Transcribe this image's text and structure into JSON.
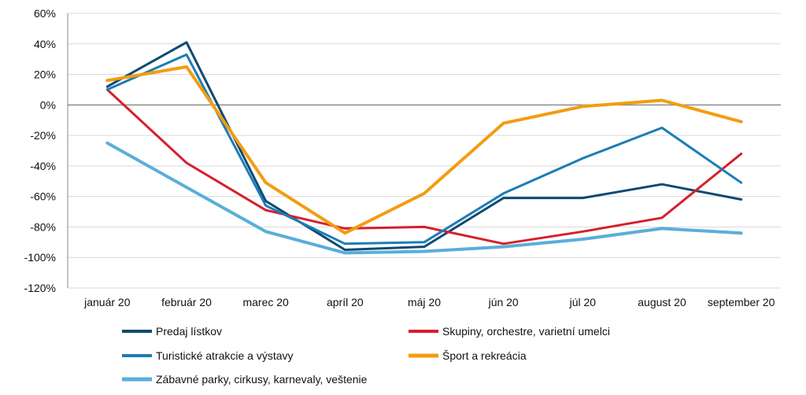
{
  "chart_data": {
    "type": "line",
    "categories": [
      "január 20",
      "február 20",
      "marec 20",
      "apríl 20",
      "máj 20",
      "jún 20",
      "júl 20",
      "august 20",
      "september 20"
    ],
    "ylim": [
      -120,
      60
    ],
    "yticks": [
      60,
      40,
      20,
      0,
      -20,
      -40,
      -60,
      -80,
      -100,
      -120
    ],
    "ytick_labels": [
      "60%",
      "40%",
      "20%",
      "0%",
      "-20%",
      "-40%",
      "-60%",
      "-80%",
      "-100%",
      "-120%"
    ],
    "grid": true,
    "legend_position": "bottom",
    "series": [
      {
        "name": "Predaj lístkov",
        "color": "#0d4a72",
        "values": [
          12,
          41,
          -63,
          -95,
          -93,
          -61,
          -61,
          -52,
          -62
        ]
      },
      {
        "name": "Skupiny, orchestre, varietní umelci",
        "color": "#d71f2b",
        "values": [
          10,
          -38,
          -69,
          -81,
          -80,
          -91,
          -83,
          -74,
          -32
        ]
      },
      {
        "name": "Turistické atrakcie a výstavy",
        "color": "#1c7db5",
        "values": [
          10,
          33,
          -66,
          -91,
          -90,
          -58,
          -35,
          -15,
          -51
        ]
      },
      {
        "name": "Šport a rekreácia",
        "color": "#f39c12",
        "values": [
          16,
          25,
          -51,
          -84,
          -58,
          -12,
          -1,
          3,
          -11
        ]
      },
      {
        "name": "Zábavné parky, cirkusy, karnevaly, veštenie",
        "color": "#5aaed9",
        "values": [
          -25,
          null,
          -83,
          -97,
          -96,
          -93,
          -88,
          -81,
          -84
        ]
      }
    ]
  }
}
